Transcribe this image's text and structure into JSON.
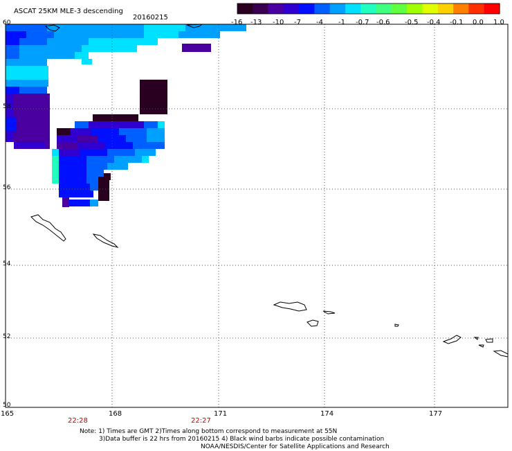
{
  "header": {
    "title": "ASCAT 25KM MLE-3 descending",
    "date": "20160215"
  },
  "colorbar": {
    "colors": [
      "#2a0020",
      "#3a0050",
      "#4a00a0",
      "#3000d0",
      "#0010ff",
      "#0060ff",
      "#00a0ff",
      "#00e0ff",
      "#20ffc0",
      "#40ff80",
      "#60ff40",
      "#a0ff00",
      "#e0ff00",
      "#ffd000",
      "#ff8000",
      "#ff3000",
      "#ff0000"
    ],
    "tick_labels": [
      "-16",
      "-13",
      "-10",
      "-7",
      "-4",
      "-1",
      "-0.7",
      "-0.6",
      "-0.5",
      "-0.4",
      "-0.1",
      "0.0",
      "1.0"
    ]
  },
  "axes": {
    "lat_labels": [
      "60",
      "58",
      "56",
      "54",
      "52",
      "50"
    ],
    "lon_labels": [
      "165",
      "168",
      "171",
      "174",
      "177"
    ]
  },
  "pass_times": [
    "22:28",
    "22:27"
  ],
  "footer": {
    "line1": "Note: 1) Times are GMT 2)Times along bottom correspond to measurement at 55N",
    "line2": "3)Data buffer is 22 hrs from 20160215 4) Black wind barbs indicate possible contamination",
    "line3": "NOAA/NESDIS/Center for Satellite Applications and Research"
  },
  "colors": {
    "time_label": "#c00000",
    "grid": "#555555",
    "coast": "#000000"
  }
}
